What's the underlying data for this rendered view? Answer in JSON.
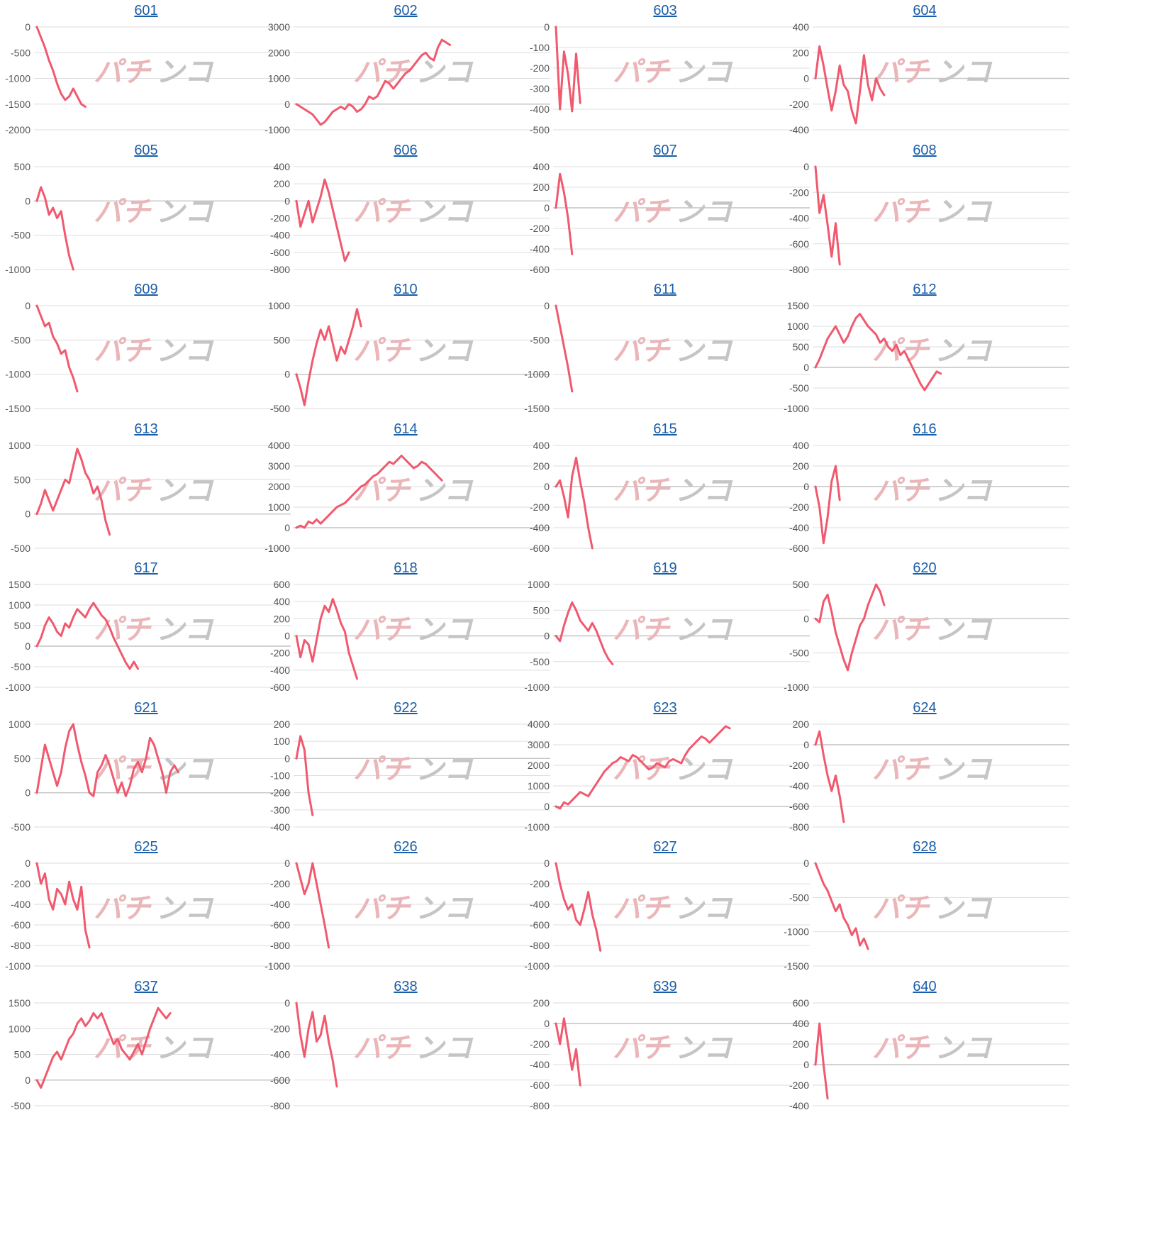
{
  "watermark": {
    "part_a": "パチ",
    "part_b": "ンコ"
  },
  "colors": {
    "line": "#f0596e",
    "grid": "#dddddd",
    "axis": "#c4c4c4",
    "tick": "#555555",
    "title": "#1a5ea8"
  },
  "chart_data": [
    {
      "type": "line",
      "title": "601",
      "ylim": [
        -2000,
        0
      ],
      "yticks": [
        "0",
        "-500",
        "-1000",
        "-1500",
        "-2000"
      ],
      "values": [
        0,
        -200,
        -400,
        -650,
        -850,
        -1100,
        -1300,
        -1420,
        -1350,
        -1200,
        -1350,
        -1500,
        -1550
      ]
    },
    {
      "type": "line",
      "title": "602",
      "ylim": [
        -1000,
        3000
      ],
      "yticks": [
        "3000",
        "2000",
        "1000",
        "0",
        "-1000"
      ],
      "values": [
        0,
        -100,
        -200,
        -300,
        -400,
        -600,
        -800,
        -700,
        -500,
        -300,
        -200,
        -100,
        -200,
        0,
        -100,
        -300,
        -200,
        0,
        300,
        200,
        300,
        600,
        900,
        800,
        600,
        800,
        1000,
        1200,
        1300,
        1500,
        1700,
        1900,
        2000,
        1800,
        1700,
        2200,
        2500,
        2400,
        2300
      ]
    },
    {
      "type": "line",
      "title": "603",
      "ylim": [
        -500,
        0
      ],
      "yticks": [
        "0",
        "-100",
        "-200",
        "-300",
        "-400",
        "-500"
      ],
      "values": [
        0,
        -400,
        -120,
        -230,
        -410,
        -130,
        -370
      ]
    },
    {
      "type": "line",
      "title": "604",
      "ylim": [
        -400,
        400
      ],
      "yticks": [
        "400",
        "200",
        "0",
        "-200",
        "-400"
      ],
      "values": [
        0,
        250,
        100,
        -80,
        -250,
        -100,
        100,
        -50,
        -100,
        -250,
        -350,
        -100,
        180,
        -50,
        -170,
        0,
        -80,
        -130
      ]
    },
    {
      "type": "line",
      "title": "605",
      "ylim": [
        -1000,
        500
      ],
      "yticks": [
        "500",
        "0",
        "-500",
        "-1000"
      ],
      "values": [
        0,
        200,
        50,
        -200,
        -100,
        -250,
        -150,
        -500,
        -800,
        -1000
      ]
    },
    {
      "type": "line",
      "title": "606",
      "ylim": [
        -800,
        400
      ],
      "yticks": [
        "400",
        "200",
        "0",
        "-200",
        "-400",
        "-600",
        "-800"
      ],
      "values": [
        0,
        -300,
        -150,
        0,
        -250,
        -100,
        50,
        250,
        100,
        -100,
        -300,
        -500,
        -700,
        -600
      ]
    },
    {
      "type": "line",
      "title": "607",
      "ylim": [
        -600,
        400
      ],
      "yticks": [
        "400",
        "200",
        "0",
        "-200",
        "-400",
        "-600"
      ],
      "values": [
        0,
        330,
        150,
        -100,
        -450
      ]
    },
    {
      "type": "line",
      "title": "608",
      "ylim": [
        -800,
        0
      ],
      "yticks": [
        "0",
        "-200",
        "-400",
        "-600",
        "-800"
      ],
      "values": [
        0,
        -360,
        -220,
        -450,
        -700,
        -440,
        -760
      ]
    },
    {
      "type": "line",
      "title": "609",
      "ylim": [
        -1500,
        0
      ],
      "yticks": [
        "0",
        "-500",
        "-1000",
        "-1500"
      ],
      "values": [
        0,
        -150,
        -300,
        -250,
        -450,
        -550,
        -700,
        -650,
        -900,
        -1050,
        -1250
      ]
    },
    {
      "type": "line",
      "title": "610",
      "ylim": [
        -500,
        1000
      ],
      "yticks": [
        "1000",
        "500",
        "0",
        "-500"
      ],
      "values": [
        0,
        -200,
        -450,
        -100,
        200,
        450,
        650,
        500,
        700,
        450,
        200,
        400,
        300,
        500,
        700,
        950,
        700
      ]
    },
    {
      "type": "line",
      "title": "611",
      "ylim": [
        -1500,
        0
      ],
      "yticks": [
        "0",
        "-500",
        "-1000",
        "-1500"
      ],
      "values": [
        0,
        -300,
        -600,
        -900,
        -1250
      ]
    },
    {
      "type": "line",
      "title": "612",
      "ylim": [
        -1000,
        1500
      ],
      "yticks": [
        "1500",
        "1000",
        "500",
        "0",
        "-500",
        "-1000"
      ],
      "values": [
        0,
        200,
        450,
        700,
        850,
        1000,
        800,
        600,
        750,
        1000,
        1200,
        1300,
        1150,
        1000,
        900,
        800,
        600,
        700,
        500,
        400,
        550,
        300,
        400,
        200,
        0,
        -200,
        -400,
        -550,
        -400,
        -250,
        -100,
        -150
      ]
    },
    {
      "type": "line",
      "title": "613",
      "ylim": [
        -500,
        1000
      ],
      "yticks": [
        "1000",
        "500",
        "0",
        "-500"
      ],
      "values": [
        0,
        150,
        350,
        200,
        50,
        200,
        350,
        500,
        450,
        700,
        950,
        800,
        600,
        500,
        300,
        400,
        200,
        -100,
        -300
      ]
    },
    {
      "type": "line",
      "title": "614",
      "ylim": [
        -1000,
        4000
      ],
      "yticks": [
        "4000",
        "3000",
        "2000",
        "1000",
        "0",
        "-1000"
      ],
      "values": [
        0,
        100,
        0,
        300,
        200,
        400,
        200,
        400,
        600,
        800,
        1000,
        1100,
        1200,
        1400,
        1600,
        1800,
        2000,
        2100,
        2300,
        2500,
        2600,
        2800,
        3000,
        3200,
        3100,
        3300,
        3500,
        3300,
        3100,
        2900,
        3000,
        3200,
        3100,
        2900,
        2700,
        2500,
        2300
      ]
    },
    {
      "type": "line",
      "title": "615",
      "ylim": [
        -600,
        400
      ],
      "yticks": [
        "400",
        "200",
        "0",
        "-200",
        "-400",
        "-600"
      ],
      "values": [
        0,
        60,
        -100,
        -300,
        100,
        280,
        50,
        -150,
        -400,
        -600
      ]
    },
    {
      "type": "line",
      "title": "616",
      "ylim": [
        -600,
        400
      ],
      "yticks": [
        "400",
        "200",
        "0",
        "-200",
        "-400",
        "-600"
      ],
      "values": [
        0,
        -200,
        -550,
        -300,
        50,
        200,
        -130
      ]
    },
    {
      "type": "line",
      "title": "617",
      "ylim": [
        -1000,
        1500
      ],
      "yticks": [
        "1500",
        "1000",
        "500",
        "0",
        "-500",
        "-1000"
      ],
      "values": [
        0,
        200,
        500,
        700,
        550,
        350,
        250,
        550,
        450,
        700,
        900,
        800,
        700,
        900,
        1050,
        900,
        750,
        650,
        450,
        200,
        0,
        -200,
        -400,
        -550,
        -380,
        -550
      ]
    },
    {
      "type": "line",
      "title": "618",
      "ylim": [
        -600,
        600
      ],
      "yticks": [
        "600",
        "400",
        "200",
        "0",
        "-200",
        "-400",
        "-600"
      ],
      "values": [
        0,
        -250,
        -50,
        -100,
        -300,
        -50,
        200,
        350,
        280,
        430,
        300,
        150,
        50,
        -200,
        -350,
        -500
      ]
    },
    {
      "type": "line",
      "title": "619",
      "ylim": [
        -1000,
        1000
      ],
      "yticks": [
        "1000",
        "500",
        "0",
        "-500",
        "-1000"
      ],
      "values": [
        0,
        -100,
        200,
        450,
        650,
        500,
        300,
        200,
        100,
        250,
        100,
        -100,
        -300,
        -450,
        -550
      ]
    },
    {
      "type": "line",
      "title": "620",
      "ylim": [
        -1000,
        500
      ],
      "yticks": [
        "500",
        "0",
        "-500",
        "-1000"
      ],
      "values": [
        0,
        -50,
        250,
        350,
        100,
        -200,
        -400,
        -600,
        -750,
        -500,
        -300,
        -100,
        0,
        200,
        350,
        500,
        400,
        200
      ]
    },
    {
      "type": "line",
      "title": "621",
      "ylim": [
        -500,
        1000
      ],
      "yticks": [
        "1000",
        "500",
        "0",
        "-500"
      ],
      "values": [
        0,
        350,
        700,
        500,
        300,
        100,
        300,
        650,
        900,
        1000,
        700,
        450,
        250,
        0,
        -50,
        300,
        400,
        550,
        400,
        200,
        0,
        150,
        -50,
        100,
        350,
        450,
        300,
        500,
        800,
        700,
        500,
        300,
        0,
        300,
        400,
        300
      ]
    },
    {
      "type": "line",
      "title": "622",
      "ylim": [
        -400,
        200
      ],
      "yticks": [
        "200",
        "100",
        "0",
        "-100",
        "-200",
        "-300",
        "-400"
      ],
      "values": [
        0,
        130,
        50,
        -200,
        -330
      ]
    },
    {
      "type": "line",
      "title": "623",
      "ylim": [
        -1000,
        4000
      ],
      "yticks": [
        "4000",
        "3000",
        "2000",
        "1000",
        "0",
        "-1000"
      ],
      "values": [
        0,
        -100,
        200,
        100,
        300,
        500,
        700,
        600,
        500,
        800,
        1100,
        1400,
        1700,
        1900,
        2100,
        2200,
        2400,
        2300,
        2200,
        2500,
        2400,
        2200,
        2000,
        1800,
        1900,
        2100,
        2000,
        1900,
        2200,
        2300,
        2200,
        2100,
        2500,
        2800,
        3000,
        3200,
        3400,
        3300,
        3100,
        3300,
        3500,
        3700,
        3900,
        3800
      ]
    },
    {
      "type": "line",
      "title": "624",
      "ylim": [
        -800,
        200
      ],
      "yticks": [
        "200",
        "0",
        "-200",
        "-400",
        "-600",
        "-800"
      ],
      "values": [
        0,
        130,
        -100,
        -300,
        -450,
        -300,
        -500,
        -750
      ]
    },
    {
      "type": "line",
      "title": "625",
      "ylim": [
        -1000,
        0
      ],
      "yticks": [
        "0",
        "-200",
        "-400",
        "-600",
        "-800",
        "-1000"
      ],
      "values": [
        0,
        -200,
        -100,
        -350,
        -450,
        -250,
        -300,
        -400,
        -180,
        -350,
        -450,
        -230,
        -650,
        -820
      ]
    },
    {
      "type": "line",
      "title": "626",
      "ylim": [
        -1000,
        0
      ],
      "yticks": [
        "0",
        "-200",
        "-400",
        "-600",
        "-800",
        "-1000"
      ],
      "values": [
        0,
        -150,
        -300,
        -200,
        0,
        -200,
        -400,
        -600,
        -820
      ]
    },
    {
      "type": "line",
      "title": "627",
      "ylim": [
        -1000,
        0
      ],
      "yticks": [
        "0",
        "-200",
        "-400",
        "-600",
        "-800",
        "-1000"
      ],
      "values": [
        0,
        -200,
        -350,
        -450,
        -400,
        -550,
        -600,
        -450,
        -280,
        -500,
        -650,
        -850
      ]
    },
    {
      "type": "line",
      "title": "628",
      "ylim": [
        -1500,
        0
      ],
      "yticks": [
        "0",
        "-500",
        "-1000",
        "-1500"
      ],
      "values": [
        0,
        -150,
        -300,
        -400,
        -550,
        -700,
        -600,
        -800,
        -900,
        -1050,
        -950,
        -1200,
        -1100,
        -1250
      ]
    },
    {
      "type": "line",
      "title": "637",
      "ylim": [
        -500,
        1500
      ],
      "yticks": [
        "1500",
        "1000",
        "500",
        "0",
        "-500"
      ],
      "values": [
        0,
        -150,
        50,
        250,
        450,
        550,
        400,
        600,
        800,
        900,
        1100,
        1200,
        1050,
        1150,
        1300,
        1200,
        1300,
        1100,
        900,
        700,
        800,
        600,
        500,
        400,
        550,
        700,
        500,
        750,
        1000,
        1200,
        1400,
        1300,
        1200,
        1300
      ]
    },
    {
      "type": "line",
      "title": "638",
      "ylim": [
        -800,
        0
      ],
      "yticks": [
        "0",
        "-200",
        "-400",
        "-600",
        "-800"
      ],
      "values": [
        0,
        -250,
        -420,
        -200,
        -70,
        -300,
        -250,
        -100,
        -300,
        -450,
        -650
      ]
    },
    {
      "type": "line",
      "title": "639",
      "ylim": [
        -800,
        200
      ],
      "yticks": [
        "200",
        "0",
        "-200",
        "-400",
        "-600",
        "-800"
      ],
      "values": [
        0,
        -200,
        50,
        -200,
        -450,
        -250,
        -600
      ]
    },
    {
      "type": "line",
      "title": "640",
      "ylim": [
        -400,
        600
      ],
      "yticks": [
        "600",
        "400",
        "200",
        "0",
        "-200",
        "-400"
      ],
      "values": [
        0,
        400,
        0,
        -330
      ]
    }
  ]
}
